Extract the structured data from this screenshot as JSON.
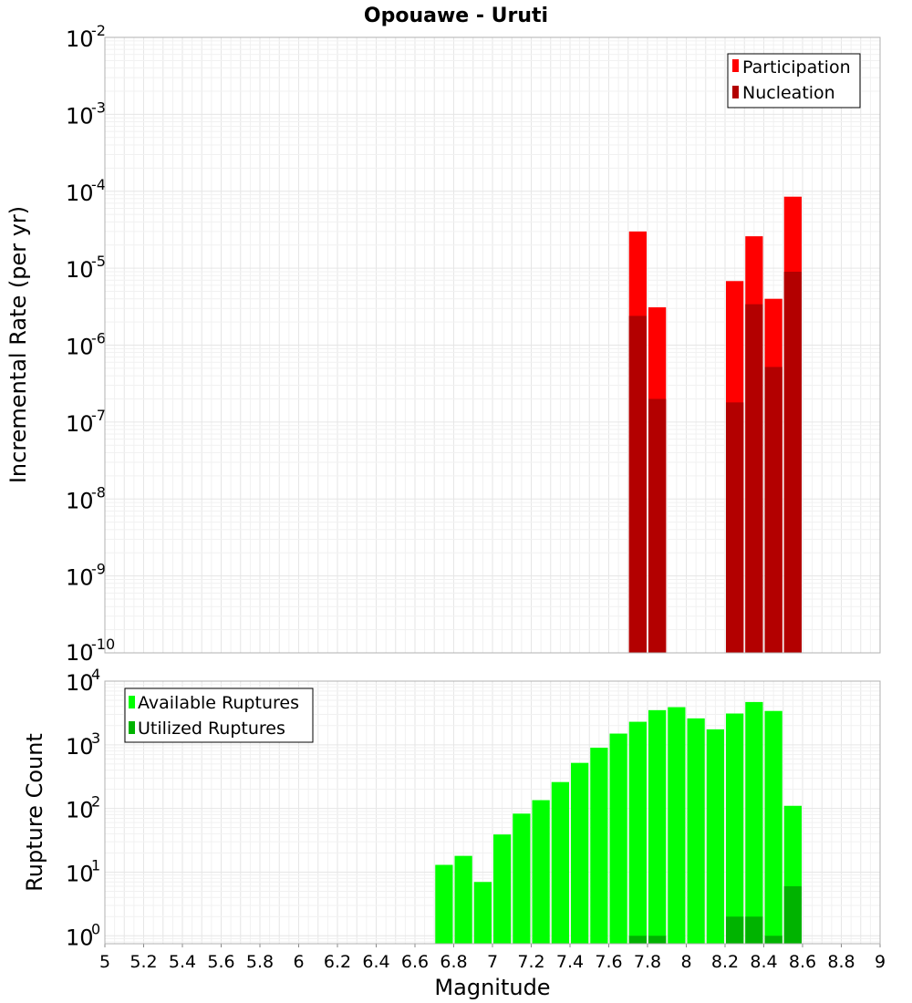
{
  "chart_data": [
    {
      "type": "bar",
      "title": "Opouawe - Uruti",
      "ylabel": "Incremental Rate (per yr)",
      "xlabel": "",
      "yscale": "log",
      "ylim": [
        1e-10,
        0.01
      ],
      "xlim": [
        5,
        9
      ],
      "y_tick_exponents": [
        -10,
        -9,
        -8,
        -7,
        -6,
        -5,
        -4,
        -3,
        -2
      ],
      "grid": true,
      "legend_position": "top-right",
      "colors": {
        "Participation": "#ff0000",
        "Nucleation": "#b30000"
      },
      "series": [
        {
          "name": "Participation",
          "x": [
            7.75,
            7.85,
            8.25,
            8.35,
            8.45,
            8.55
          ],
          "values": [
            3e-05,
            3.1e-06,
            6.8e-06,
            2.6e-05,
            4e-06,
            8.5e-05
          ]
        },
        {
          "name": "Nucleation",
          "x": [
            7.75,
            7.85,
            8.25,
            8.35,
            8.45,
            8.55
          ],
          "values": [
            2.4e-06,
            2e-07,
            1.8e-07,
            3.4e-06,
            5.2e-07,
            9e-06
          ]
        }
      ]
    },
    {
      "type": "bar",
      "title": "",
      "ylabel": "Rupture Count",
      "xlabel": "Magnitude",
      "yscale": "log",
      "ylim": [
        0.75,
        10000
      ],
      "xlim": [
        5,
        9
      ],
      "y_tick_exponents": [
        0,
        1,
        2,
        3,
        4
      ],
      "x_ticks": [
        "5",
        "5.2",
        "5.4",
        "5.6",
        "5.8",
        "6",
        "6.2",
        "6.4",
        "6.6",
        "6.8",
        "7",
        "7.2",
        "7.4",
        "7.6",
        "7.8",
        "8",
        "8.2",
        "8.4",
        "8.6",
        "8.8",
        "9"
      ],
      "grid": true,
      "legend_position": "top-left",
      "colors": {
        "Available Ruptures": "#00ff00",
        "Utilized Ruptures": "#00b300"
      },
      "series": [
        {
          "name": "Available Ruptures",
          "x": [
            6.75,
            6.85,
            6.95,
            7.05,
            7.15,
            7.25,
            7.35,
            7.45,
            7.55,
            7.65,
            7.75,
            7.85,
            7.95,
            8.05,
            8.15,
            8.25,
            8.35,
            8.45,
            8.55
          ],
          "values": [
            13,
            18,
            7,
            39,
            83,
            135,
            260,
            520,
            900,
            1500,
            2300,
            3500,
            3900,
            2600,
            1750,
            3100,
            4700,
            3400,
            110
          ]
        },
        {
          "name": "Utilized Ruptures",
          "x": [
            7.75,
            7.85,
            8.25,
            8.35,
            8.45,
            8.55
          ],
          "values": [
            1,
            1,
            2,
            2,
            1,
            6
          ]
        }
      ]
    }
  ]
}
